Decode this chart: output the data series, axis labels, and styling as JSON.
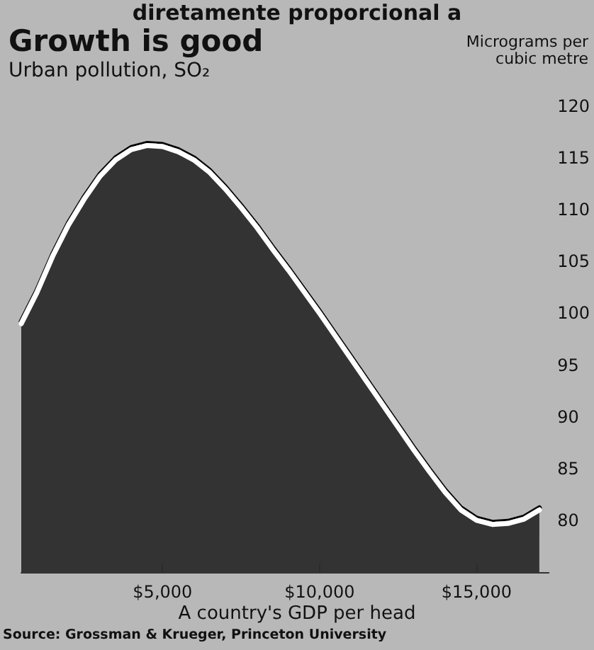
{
  "chart_data": {
    "type": "area",
    "title": "Growth is good",
    "subtitle": "Urban pollution, SO₂",
    "xlabel": "A country's GDP per head",
    "ylabel": "Micrograms per cubic metre",
    "annotations": [
      "diretamente proporcional a",
      "Source: Grossman & Krueger, Princeton University"
    ],
    "series": [
      {
        "color": "#2b2b2b",
        "x": [
          500,
          1000,
          1500,
          2000,
          2500,
          3000,
          3500,
          4000,
          4500,
          5000,
          5500,
          6000,
          6500,
          7000,
          7500,
          8000,
          8500,
          9000,
          9500,
          10000,
          10500,
          11000,
          11500,
          12000,
          12500,
          13000,
          13500,
          14000,
          14500,
          15000,
          15500,
          16000,
          16500,
          17000
        ],
        "values": [
          99,
          102,
          105.5,
          108.5,
          111,
          113.2,
          114.8,
          115.8,
          116.2,
          116.1,
          115.6,
          114.8,
          113.6,
          112,
          110.2,
          108.3,
          106.2,
          104.2,
          102.1,
          100,
          97.8,
          95.6,
          93.4,
          91.2,
          89,
          86.8,
          84.7,
          82.7,
          81,
          80,
          79.6,
          79.7,
          80.1,
          81
        ]
      }
    ],
    "xlim": [
      500,
      17300
    ],
    "ylim": [
      75,
      120
    ],
    "xticks": [
      {
        "value": 5000,
        "label": "$5,000"
      },
      {
        "value": 10000,
        "label": "$10,000"
      },
      {
        "value": 15000,
        "label": "$15,000"
      }
    ],
    "yticks": [
      80,
      85,
      90,
      95,
      100,
      105,
      110,
      115,
      120
    ],
    "grid": false,
    "marker": "none",
    "line_style": "solid"
  }
}
